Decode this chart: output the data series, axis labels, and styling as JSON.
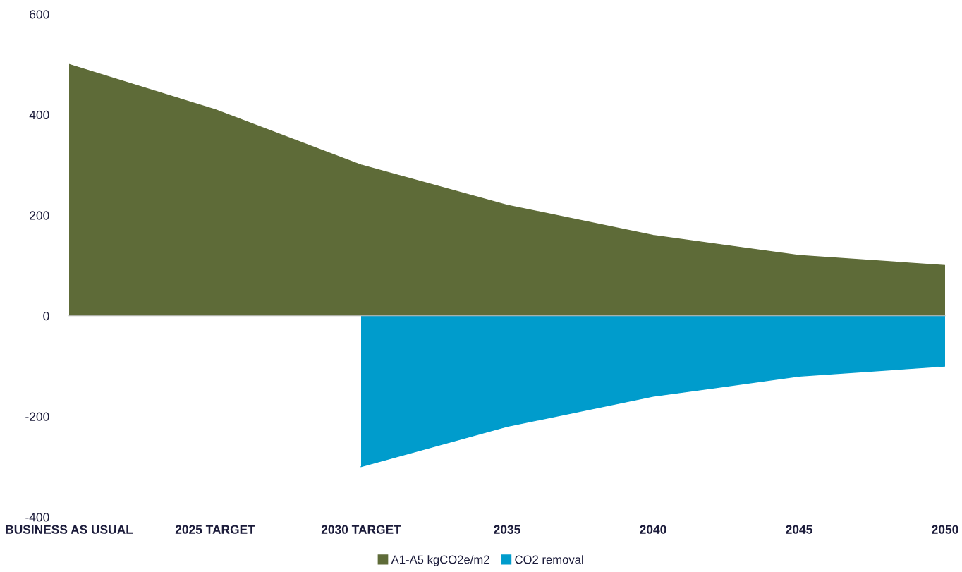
{
  "chart_data": {
    "type": "area",
    "categories": [
      "BUSINESS AS USUAL",
      "2025 TARGET",
      "2030 TARGET",
      "2035",
      "2040",
      "2045",
      "2050"
    ],
    "series": [
      {
        "name": "A1-A5 kgCO2e/m2",
        "color": "#5e6b38",
        "values": [
          500,
          410,
          300,
          220,
          160,
          120,
          100
        ]
      },
      {
        "name": "CO2 removal",
        "color": "#009ccc",
        "values": [
          null,
          null,
          -300,
          -220,
          -160,
          -120,
          -100
        ]
      }
    ],
    "ylim": [
      -400,
      600
    ],
    "yticks": [
      -400,
      -200,
      0,
      200,
      400,
      600
    ],
    "legend": "bottom"
  }
}
